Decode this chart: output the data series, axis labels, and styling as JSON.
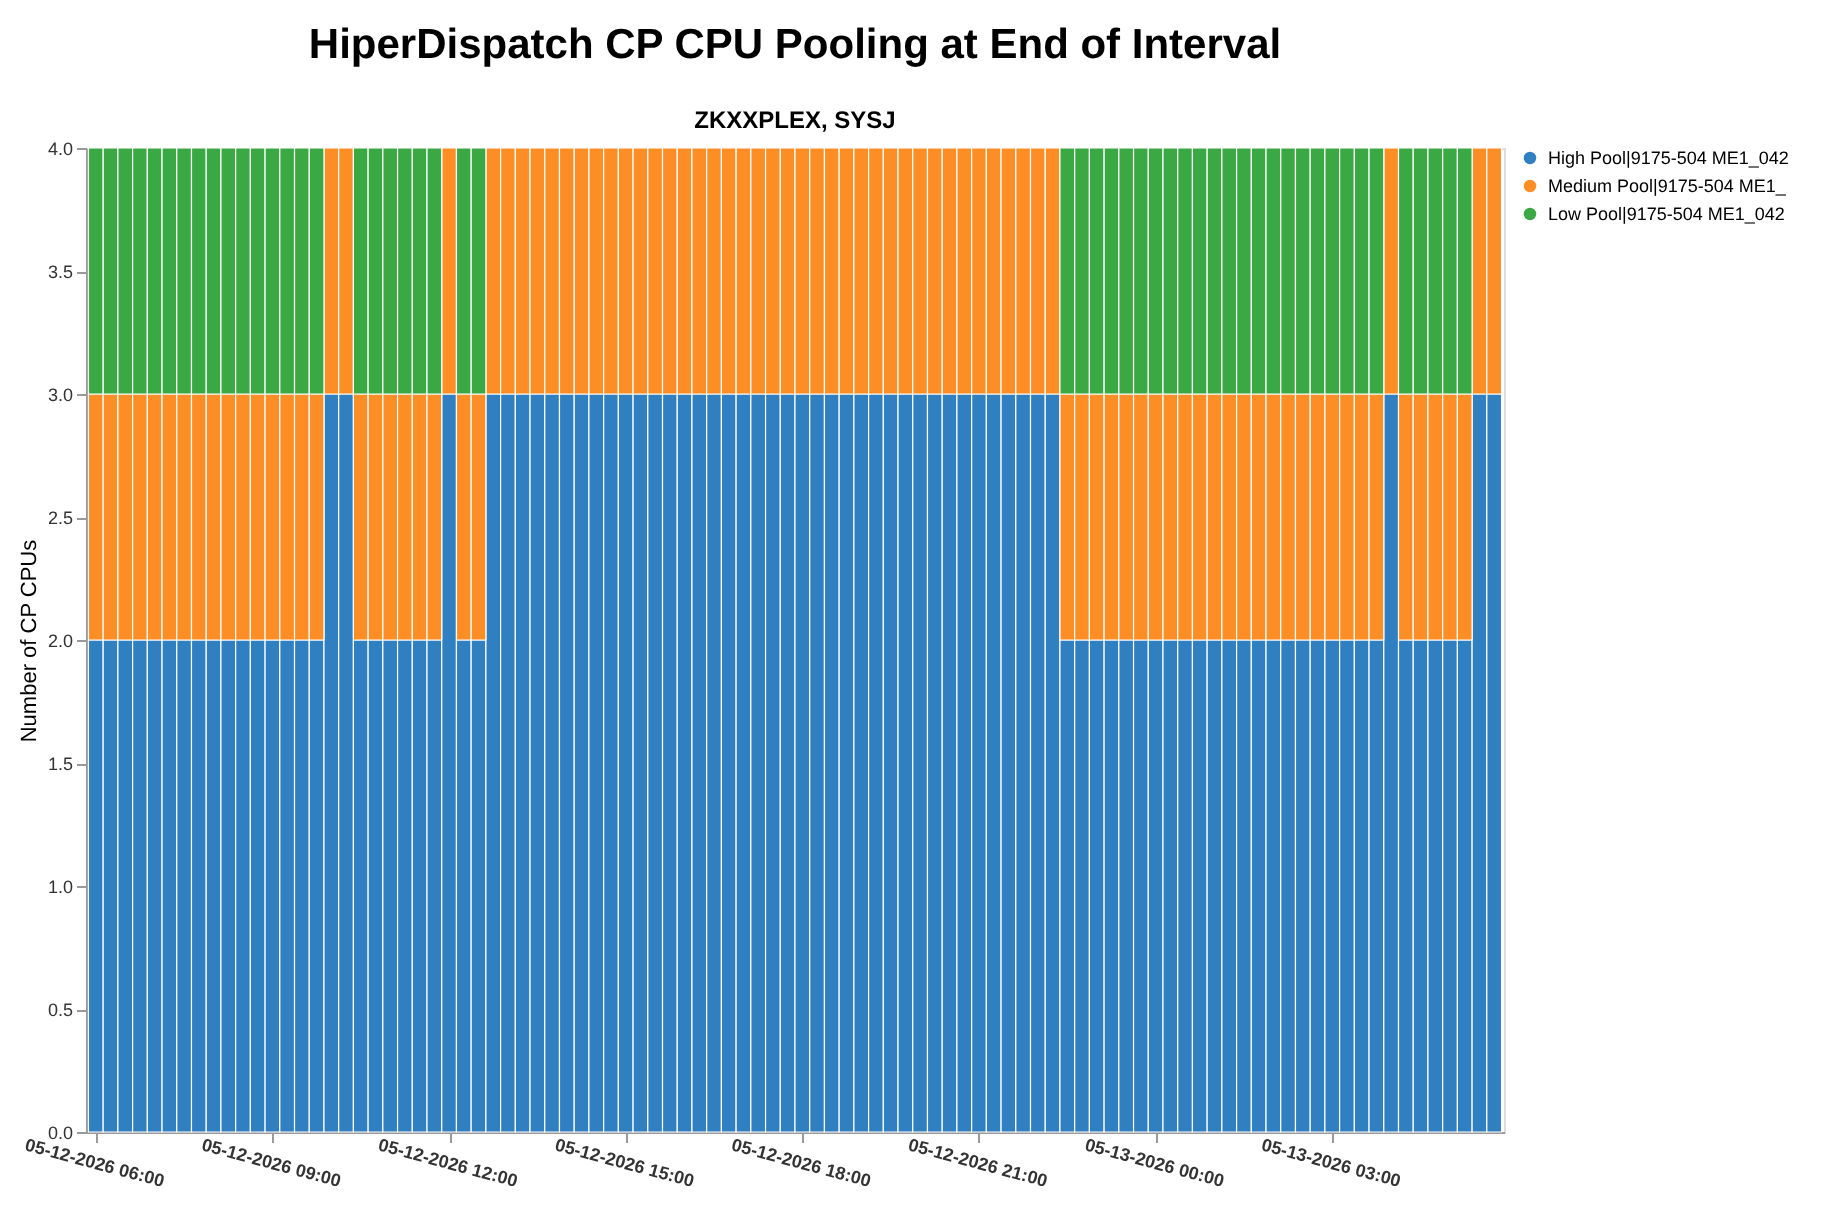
{
  "chart_data": {
    "type": "bar",
    "stacked": true,
    "title": "HiperDispatch CP CPU Pooling at End of Interval",
    "subtitle": "ZKXXPLEX, SYSJ",
    "ylabel": "Number of CP CPUs",
    "x": [
      "2026-05-12T06:00",
      "2026-05-12T06:15",
      "2026-05-12T06:30",
      "2026-05-12T06:45",
      "2026-05-12T07:00",
      "2026-05-12T07:15",
      "2026-05-12T07:30",
      "2026-05-12T07:45",
      "2026-05-12T08:00",
      "2026-05-12T08:15",
      "2026-05-12T08:30",
      "2026-05-12T08:45",
      "2026-05-12T09:00",
      "2026-05-12T09:15",
      "2026-05-12T09:30",
      "2026-05-12T09:45",
      "2026-05-12T10:00",
      "2026-05-12T10:15",
      "2026-05-12T10:30",
      "2026-05-12T10:45",
      "2026-05-12T11:00",
      "2026-05-12T11:15",
      "2026-05-12T11:30",
      "2026-05-12T11:45",
      "2026-05-12T12:00",
      "2026-05-12T12:15",
      "2026-05-12T12:30",
      "2026-05-12T12:45",
      "2026-05-12T13:00",
      "2026-05-12T13:15",
      "2026-05-12T13:30",
      "2026-05-12T13:45",
      "2026-05-12T14:00",
      "2026-05-12T14:15",
      "2026-05-12T14:30",
      "2026-05-12T14:45",
      "2026-05-12T15:00",
      "2026-05-12T15:15",
      "2026-05-12T15:30",
      "2026-05-12T15:45",
      "2026-05-12T16:00",
      "2026-05-12T16:15",
      "2026-05-12T16:30",
      "2026-05-12T16:45",
      "2026-05-12T17:00",
      "2026-05-12T17:15",
      "2026-05-12T17:30",
      "2026-05-12T17:45",
      "2026-05-12T18:00",
      "2026-05-12T18:15",
      "2026-05-12T18:30",
      "2026-05-12T18:45",
      "2026-05-12T19:00",
      "2026-05-12T19:15",
      "2026-05-12T19:30",
      "2026-05-12T19:45",
      "2026-05-12T20:00",
      "2026-05-12T20:15",
      "2026-05-12T20:30",
      "2026-05-12T20:45",
      "2026-05-12T21:00",
      "2026-05-12T21:15",
      "2026-05-12T21:30",
      "2026-05-12T21:45",
      "2026-05-12T22:00",
      "2026-05-12T22:15",
      "2026-05-12T22:30",
      "2026-05-12T22:45",
      "2026-05-12T23:00",
      "2026-05-12T23:15",
      "2026-05-12T23:30",
      "2026-05-12T23:45",
      "2026-05-13T00:00",
      "2026-05-13T00:15",
      "2026-05-13T00:30",
      "2026-05-13T00:45",
      "2026-05-13T01:00",
      "2026-05-13T01:15",
      "2026-05-13T01:30",
      "2026-05-13T01:45",
      "2026-05-13T02:00",
      "2026-05-13T02:15",
      "2026-05-13T02:30",
      "2026-05-13T02:45",
      "2026-05-13T03:00",
      "2026-05-13T03:15",
      "2026-05-13T03:30",
      "2026-05-13T03:45",
      "2026-05-13T04:00",
      "2026-05-13T04:15",
      "2026-05-13T04:30",
      "2026-05-13T04:45",
      "2026-05-13T05:00",
      "2026-05-13T05:15",
      "2026-05-13T05:30",
      "2026-05-13T05:45"
    ],
    "series": [
      {
        "name": "High Pool|9175-504 ME1_042",
        "color": "#2f7fc1",
        "values": [
          2,
          2,
          2,
          2,
          2,
          2,
          2,
          2,
          2,
          2,
          2,
          2,
          2,
          2,
          2,
          2,
          3,
          3,
          2,
          2,
          2,
          2,
          2,
          2,
          3,
          2,
          2,
          3,
          3,
          3,
          3,
          3,
          3,
          3,
          3,
          3,
          3,
          3,
          3,
          3,
          3,
          3,
          3,
          3,
          3,
          3,
          3,
          3,
          3,
          3,
          3,
          3,
          3,
          3,
          3,
          3,
          3,
          3,
          3,
          3,
          3,
          3,
          3,
          3,
          3,
          3,
          2,
          2,
          2,
          2,
          2,
          2,
          2,
          2,
          2,
          2,
          2,
          2,
          2,
          2,
          2,
          2,
          2,
          2,
          2,
          2,
          2,
          2,
          3,
          2,
          2,
          2,
          2,
          2,
          3,
          3
        ]
      },
      {
        "name": "Medium Pool|9175-504 ME1_",
        "color": "#fd8d25",
        "values": [
          1,
          1,
          1,
          1,
          1,
          1,
          1,
          1,
          1,
          1,
          1,
          1,
          1,
          1,
          1,
          1,
          1,
          1,
          1,
          1,
          1,
          1,
          1,
          1,
          1,
          1,
          1,
          1,
          1,
          1,
          1,
          1,
          1,
          1,
          1,
          1,
          1,
          1,
          1,
          1,
          1,
          1,
          1,
          1,
          1,
          1,
          1,
          1,
          1,
          1,
          1,
          1,
          1,
          1,
          1,
          1,
          1,
          1,
          1,
          1,
          1,
          1,
          1,
          1,
          1,
          1,
          1,
          1,
          1,
          1,
          1,
          1,
          1,
          1,
          1,
          1,
          1,
          1,
          1,
          1,
          1,
          1,
          1,
          1,
          1,
          1,
          1,
          1,
          1,
          1,
          1,
          1,
          1,
          1,
          1,
          1
        ]
      },
      {
        "name": "Low Pool|9175-504 ME1_042",
        "color": "#3aa843",
        "values": [
          1,
          1,
          1,
          1,
          1,
          1,
          1,
          1,
          1,
          1,
          1,
          1,
          1,
          1,
          1,
          1,
          0,
          0,
          1,
          1,
          1,
          1,
          1,
          1,
          0,
          1,
          1,
          0,
          0,
          0,
          0,
          0,
          0,
          0,
          0,
          0,
          0,
          0,
          0,
          0,
          0,
          0,
          0,
          0,
          0,
          0,
          0,
          0,
          0,
          0,
          0,
          0,
          0,
          0,
          0,
          0,
          0,
          0,
          0,
          0,
          0,
          0,
          0,
          0,
          0,
          0,
          1,
          1,
          1,
          1,
          1,
          1,
          1,
          1,
          1,
          1,
          1,
          1,
          1,
          1,
          1,
          1,
          1,
          1,
          1,
          1,
          1,
          1,
          0,
          1,
          1,
          1,
          1,
          1,
          0,
          0
        ]
      }
    ],
    "xlim": [
      "2026-05-12T05:50",
      "2026-05-13T05:55"
    ],
    "xticks": [
      {
        "value": "2026-05-12T06:00",
        "label": "05-12-2026 06:00"
      },
      {
        "value": "2026-05-12T09:00",
        "label": "05-12-2026 09:00"
      },
      {
        "value": "2026-05-12T12:00",
        "label": "05-12-2026 12:00"
      },
      {
        "value": "2026-05-12T15:00",
        "label": "05-12-2026 15:00"
      },
      {
        "value": "2026-05-12T18:00",
        "label": "05-12-2026 18:00"
      },
      {
        "value": "2026-05-12T21:00",
        "label": "05-12-2026 21:00"
      },
      {
        "value": "2026-05-13T00:00",
        "label": "05-13-2026 00:00"
      },
      {
        "value": "2026-05-13T03:00",
        "label": "05-13-2026 03:00"
      }
    ],
    "ylim": [
      0,
      4
    ],
    "yticks": [
      {
        "value": 0,
        "label": "0.0"
      },
      {
        "value": 0.5,
        "label": "0.5"
      },
      {
        "value": 1,
        "label": "1.0"
      },
      {
        "value": 1.5,
        "label": "1.5"
      },
      {
        "value": 2,
        "label": "2.0"
      },
      {
        "value": 2.5,
        "label": "2.5"
      },
      {
        "value": 3,
        "label": "3.0"
      },
      {
        "value": 3.5,
        "label": "3.5"
      },
      {
        "value": 4,
        "label": "4.0"
      }
    ],
    "legend": "top right"
  }
}
